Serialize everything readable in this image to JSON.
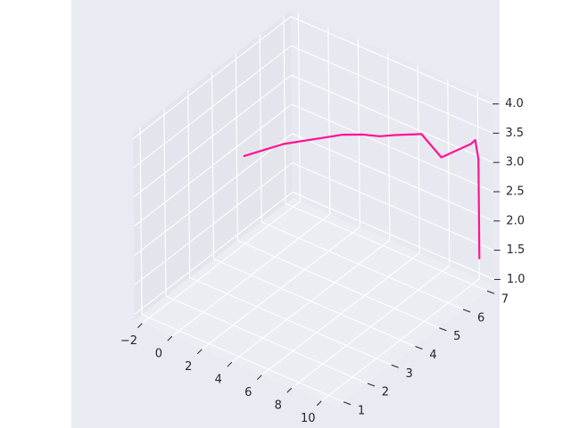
{
  "chart_data": {
    "type": "line",
    "projection": "3d",
    "title": "",
    "xlabel": "",
    "ylabel": "",
    "zlabel": "",
    "grid": true,
    "legend": "none",
    "xlim": [
      -2.5,
      11
    ],
    "ylim": [
      0.7,
      7.3
    ],
    "zlim": [
      0.9,
      4.1
    ],
    "x_ticks": [
      -2,
      0,
      2,
      4,
      6,
      8,
      10
    ],
    "y_ticks": [
      1,
      2,
      3,
      4,
      5,
      6,
      7
    ],
    "z_ticks": [
      1.0,
      1.5,
      2.0,
      2.5,
      3.0,
      3.5,
      4.0
    ],
    "x_tick_labels": [
      "−2",
      "0",
      "2",
      "4",
      "6",
      "8",
      "10"
    ],
    "y_tick_labels": [
      "1",
      "2",
      "3",
      "4",
      "5",
      "6",
      "7"
    ],
    "z_tick_labels": [
      "1.0",
      "1.5",
      "2.0",
      "2.5",
      "3.0",
      "3.5",
      "4.0"
    ],
    "series": [
      {
        "color": "#ff1493",
        "x": [
          -2.0,
          -1.0,
          0.0,
          1.0,
          2.0,
          3.0,
          4.0,
          5.0,
          6.0,
          7.5,
          8.5,
          9.0,
          9.5,
          10.0,
          10.3,
          10.5,
          10.5,
          10.5
        ],
        "y": [
          5.0,
          5.2,
          5.4,
          5.6,
          5.8,
          6.0,
          6.2,
          6.3,
          6.4,
          6.5,
          6.7,
          6.8,
          6.9,
          7.0,
          7.0,
          7.0,
          7.0,
          7.0
        ],
        "z": [
          2.4,
          2.55,
          2.7,
          2.8,
          2.9,
          3.0,
          3.05,
          3.1,
          3.2,
          3.35,
          3.0,
          3.1,
          3.2,
          3.3,
          3.4,
          3.1,
          2.55,
          1.4
        ]
      }
    ]
  },
  "colors": {
    "figure_background": "#ffffff",
    "axes_background": "#eaeaf2",
    "pane_left": "#e4e4ec",
    "pane_back": "#e8e8f0",
    "pane_floor": "#ececf3",
    "grid": "#ffffff",
    "tick_label": "#262626",
    "line": "#ff1493"
  }
}
